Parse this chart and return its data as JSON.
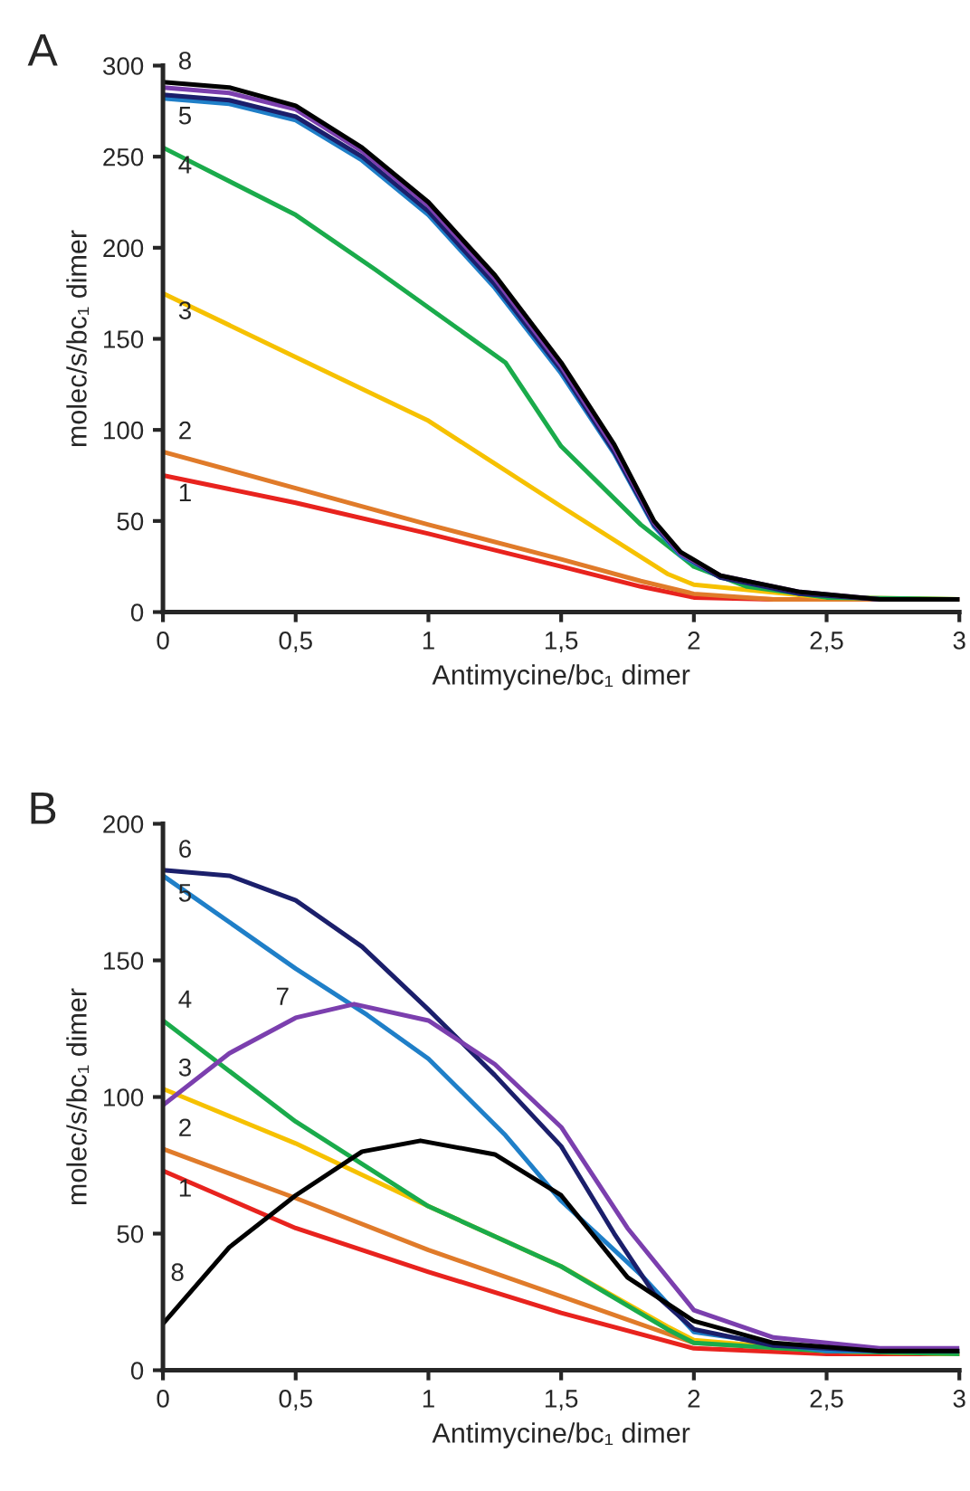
{
  "chart_data": [
    {
      "type": "line",
      "title": "A",
      "xlabel": "Antimycine/bc₁ dimer",
      "ylabel": "molec/s/bc₁ dimer",
      "xlim": [
        0,
        3
      ],
      "ylim": [
        0,
        300
      ],
      "xticks": [
        0,
        {
          "value": 0.5,
          "label": "0,5"
        },
        1,
        {
          "value": 1.5,
          "label": "1,5"
        },
        2,
        {
          "value": 2.5,
          "label": "2,5"
        },
        3
      ],
      "yticks": [
        0,
        50,
        100,
        150,
        200,
        250,
        300
      ],
      "grid": false,
      "legend": false,
      "series": [
        {
          "name": "1",
          "color": "#e8231e",
          "x": [
            0,
            0.5,
            1,
            1.5,
            1.8,
            2,
            2.3,
            3
          ],
          "values": [
            75,
            60,
            43,
            25,
            14,
            8,
            7,
            7
          ]
        },
        {
          "name": "2",
          "color": "#e07b2a",
          "x": [
            0,
            0.5,
            1,
            1.5,
            1.8,
            2,
            2.3,
            3
          ],
          "values": [
            88,
            68,
            48,
            29,
            17,
            10,
            7,
            7
          ]
        },
        {
          "name": "3",
          "color": "#f6c100",
          "x": [
            0,
            0.5,
            1,
            1.5,
            1.9,
            2,
            2.5,
            3
          ],
          "values": [
            175,
            140,
            105,
            58,
            21,
            15,
            8,
            7
          ]
        },
        {
          "name": "4",
          "color": "#1aab4b",
          "x": [
            0,
            0.5,
            0.8,
            1.29,
            1.5,
            1.8,
            2,
            2.2,
            2.5,
            3
          ],
          "values": [
            255,
            218,
            188,
            137,
            91,
            48,
            25,
            14,
            8,
            7
          ]
        },
        {
          "name": "5",
          "color": "#1f7fc8",
          "x": [
            0,
            0.25,
            0.5,
            0.75,
            1,
            1.25,
            1.5,
            1.7,
            1.85,
            1.95,
            2.1,
            2.4
          ],
          "values": [
            282,
            279,
            270,
            248,
            218,
            178,
            131,
            87,
            47,
            31,
            19,
            10
          ]
        },
        {
          "color": "#1b1f6b",
          "x": [
            0,
            0.25,
            0.5,
            0.75,
            1,
            1.25,
            1.5,
            1.7,
            1.85,
            1.95,
            2.1,
            2.4,
            2.7,
            3
          ],
          "values": [
            284,
            281,
            272,
            250,
            220,
            180,
            133,
            88,
            48,
            32,
            19,
            10,
            7,
            7
          ]
        },
        {
          "color": "#7b3fae",
          "x": [
            0,
            0.25,
            0.5,
            0.75,
            1,
            1.25,
            1.5,
            1.7,
            1.85,
            1.95,
            2.1,
            2.4,
            2.7,
            3
          ],
          "values": [
            288,
            285,
            276,
            253,
            223,
            183,
            135,
            90,
            49,
            32,
            20,
            11,
            7,
            7
          ]
        },
        {
          "name": "8",
          "color": "#000000",
          "x": [
            0,
            0.25,
            0.5,
            0.75,
            1,
            1.25,
            1.5,
            1.7,
            1.85,
            1.95,
            2.1,
            2.4,
            2.7,
            3
          ],
          "values": [
            291,
            288,
            278,
            255,
            225,
            185,
            137,
            92,
            50,
            33,
            20,
            11,
            7,
            7
          ]
        }
      ]
    },
    {
      "type": "line",
      "title": "B",
      "xlabel": "Antimycine/bc₁ dimer",
      "ylabel": "molec/s/bc₁ dimer",
      "xlim": [
        0,
        3
      ],
      "ylim": [
        0,
        200
      ],
      "xticks": [
        0,
        {
          "value": 0.5,
          "label": "0,5"
        },
        1,
        {
          "value": 1.5,
          "label": "1,5"
        },
        2,
        {
          "value": 2.5,
          "label": "2,5"
        },
        3
      ],
      "yticks": [
        0,
        50,
        100,
        150,
        200
      ],
      "grid": false,
      "legend": false,
      "series": [
        {
          "name": "1",
          "color": "#e8231e",
          "x": [
            0,
            0.5,
            1,
            1.5,
            2,
            2.5,
            3
          ],
          "values": [
            73,
            52,
            36,
            21,
            8,
            6,
            6
          ]
        },
        {
          "name": "2",
          "color": "#e07b2a",
          "x": [
            0,
            0.5,
            1,
            1.5,
            2,
            2.5,
            3
          ],
          "values": [
            81,
            63,
            44,
            27,
            10,
            7,
            6
          ]
        },
        {
          "name": "3",
          "color": "#f6c100",
          "x": [
            0,
            0.5,
            1,
            1.5,
            1.9,
            2,
            2.5,
            3
          ],
          "values": [
            103,
            83,
            60,
            38,
            16,
            11,
            7,
            6
          ]
        },
        {
          "name": "4",
          "color": "#1aab4b",
          "x": [
            0,
            0.5,
            1,
            1.5,
            1.9,
            2,
            2.5,
            3
          ],
          "values": [
            128,
            91,
            60,
            38,
            15,
            10,
            7,
            6
          ]
        },
        {
          "name": "5",
          "color": "#1f7fc8",
          "x": [
            0,
            0.5,
            0.77,
            1,
            1.29,
            1.5,
            1.8,
            2,
            2.5,
            3
          ],
          "values": [
            181,
            147,
            130,
            114,
            86,
            62,
            35,
            14,
            7,
            7
          ]
        },
        {
          "name": "6",
          "color": "#1b1f6b",
          "x": [
            0,
            0.25,
            0.5,
            0.75,
            1,
            1.25,
            1.5,
            1.7,
            1.85,
            2,
            2.3,
            2.7,
            3
          ],
          "values": [
            183,
            181,
            172,
            155,
            132,
            108,
            82,
            50,
            28,
            15,
            9,
            7,
            7
          ]
        },
        {
          "name": "7",
          "color": "#7b3fae",
          "x": [
            0,
            0.25,
            0.5,
            0.72,
            1,
            1.25,
            1.5,
            1.75,
            2,
            2.3,
            2.7,
            3
          ],
          "values": [
            97,
            116,
            129,
            134,
            128,
            112,
            89,
            52,
            22,
            12,
            8,
            8
          ]
        },
        {
          "name": "8",
          "color": "#000000",
          "x": [
            0,
            0.25,
            0.5,
            0.75,
            0.97,
            1.25,
            1.5,
            1.75,
            2,
            2.3,
            2.7,
            3
          ],
          "values": [
            17,
            45,
            64,
            80,
            84,
            79,
            64,
            34,
            18,
            10,
            7,
            7
          ]
        }
      ]
    }
  ]
}
